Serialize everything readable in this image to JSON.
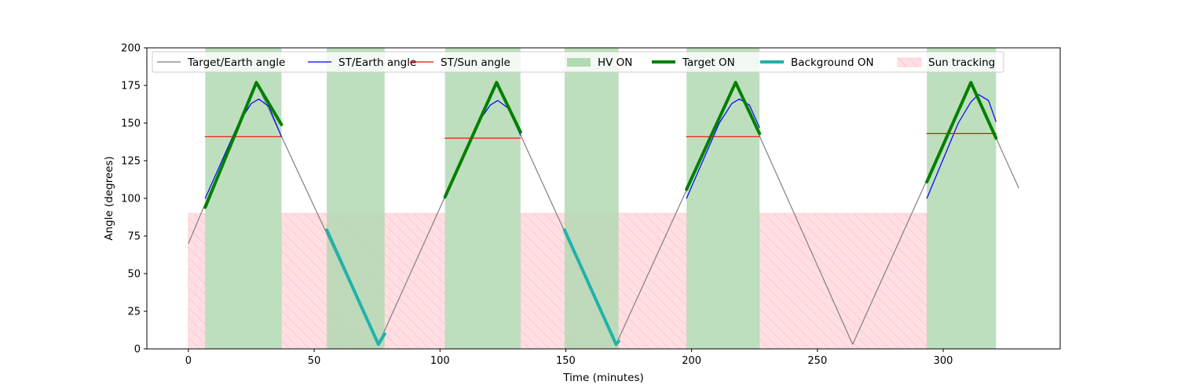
{
  "chart_data": {
    "type": "line",
    "xlabel": "Time (minutes)",
    "ylabel": "Angle (degrees)",
    "xlim": [
      -16.5,
      346.5
    ],
    "ylim": [
      0,
      200
    ],
    "xticks": [
      0,
      50,
      100,
      150,
      200,
      250,
      300
    ],
    "yticks": [
      0,
      25,
      50,
      75,
      100,
      125,
      150,
      175,
      200
    ],
    "grid": false,
    "legend_position": "top",
    "colors": {
      "target_earth": "#808080",
      "st_earth": "#0000ff",
      "st_sun": "#ff0000",
      "hv_on": "#b3d9b3",
      "target_on": "#008000",
      "background_on": "#20b2aa",
      "sun_tracking_fill": "#ffdfe3",
      "sun_tracking_hatch": "#ffb0b8"
    },
    "legend": [
      {
        "label": "Target/Earth angle",
        "kind": "line",
        "color": "#808080",
        "width": 1.2
      },
      {
        "label": "ST/Earth angle",
        "kind": "line",
        "color": "#0000ff",
        "width": 1.2
      },
      {
        "label": "ST/Sun angle",
        "kind": "line",
        "color": "#ff0000",
        "width": 1.2
      },
      {
        "label": "HV ON",
        "kind": "patch",
        "color": "#b3d9b3"
      },
      {
        "label": "Target ON",
        "kind": "line",
        "color": "#008000",
        "width": 4
      },
      {
        "label": "Background ON",
        "kind": "line",
        "color": "#20b2aa",
        "width": 4
      },
      {
        "label": "Sun tracking",
        "kind": "hatch",
        "color": "#ffdfe3"
      }
    ],
    "hv_on_intervals": [
      [
        6.7,
        37
      ],
      [
        55,
        78
      ],
      [
        102,
        132
      ],
      [
        149.5,
        171
      ],
      [
        198,
        227
      ],
      [
        293.5,
        321
      ]
    ],
    "sun_tracking_intervals": [
      [
        0,
        6.7
      ],
      [
        37,
        102
      ],
      [
        132,
        198
      ],
      [
        227,
        293.5
      ]
    ],
    "sun_tracking_height": 90,
    "series": [
      {
        "name": "Target/Earth angle",
        "color": "#808080",
        "width": 1.2,
        "x": [
          0,
          27,
          75.5,
          122.5,
          170,
          217.5,
          264,
          311,
          330
        ],
        "y": [
          70,
          177,
          3,
          177,
          3,
          177,
          3,
          177,
          107
        ]
      },
      {
        "name": "ST/Earth angle",
        "color": "#0000ff",
        "width": 1.2,
        "segments": [
          {
            "x": [
              6.7,
              20,
              25,
              28,
              32,
              37
            ],
            "y": [
              100,
              150,
              163,
              166,
              161,
              141
            ]
          },
          {
            "x": [
              102,
              115,
              120,
              123,
              127,
              132
            ],
            "y": [
              100,
              150,
              162,
              165,
              160,
              142
            ]
          },
          {
            "x": [
              198,
              211,
              216,
              219,
              223,
              227
            ],
            "y": [
              100,
              150,
              163,
              166,
              162,
              147
            ]
          },
          {
            "x": [
              293.5,
              306,
              311,
              314,
              318,
              321
            ],
            "y": [
              100,
              150,
              164,
              169,
              165,
              151
            ]
          }
        ]
      },
      {
        "name": "ST/Sun angle",
        "color": "#ff0000",
        "width": 1.2,
        "segments": [
          {
            "x": [
              6.7,
              37
            ],
            "y": [
              141,
              141
            ]
          },
          {
            "x": [
              102,
              132
            ],
            "y": [
              140,
              140
            ]
          },
          {
            "x": [
              198,
              227
            ],
            "y": [
              141,
              141
            ]
          },
          {
            "x": [
              293.5,
              321
            ],
            "y": [
              143,
              143
            ]
          }
        ]
      },
      {
        "name": "Target ON",
        "color": "#008000",
        "width": 4,
        "segments": [
          {
            "x": [
              6.7,
              27,
              37
            ],
            "y": [
              94,
              177,
              149
            ]
          },
          {
            "x": [
              102,
              122.5,
              132
            ],
            "y": [
              101,
              177,
              144
            ]
          },
          {
            "x": [
              198,
              217.5,
              227
            ],
            "y": [
              106,
              177,
              143
            ]
          },
          {
            "x": [
              293.5,
              311,
              321
            ],
            "y": [
              111,
              177,
              140
            ]
          }
        ]
      },
      {
        "name": "Background ON",
        "color": "#20b2aa",
        "width": 4,
        "segments": [
          {
            "x": [
              55,
              75.5,
              78
            ],
            "y": [
              79,
              3,
              10
            ]
          },
          {
            "x": [
              149.5,
              170,
              171
            ],
            "y": [
              79,
              3,
              5
            ]
          }
        ]
      }
    ]
  }
}
